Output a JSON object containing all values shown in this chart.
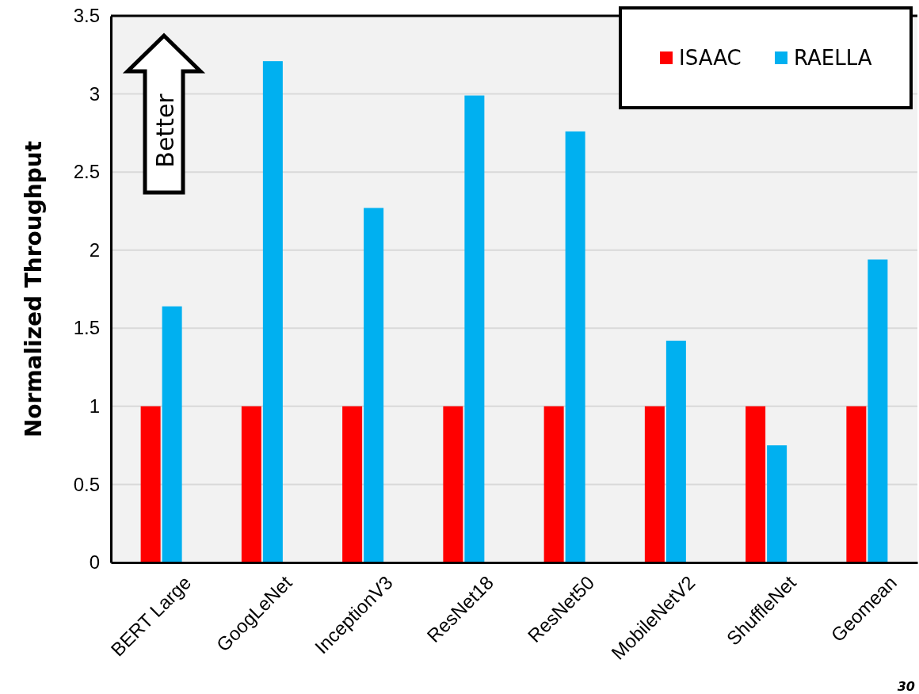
{
  "chart_data": {
    "type": "bar",
    "ylabel": "Normalized Throughput",
    "categories": [
      "BERT Large",
      "GoogLeNet",
      "InceptionV3",
      "ResNet18",
      "ResNet50",
      "MobileNetV2",
      "ShuffleNet",
      "Geomean"
    ],
    "series": [
      {
        "name": "ISAAC",
        "color": "#ff0000",
        "values": [
          1,
          1,
          1,
          1,
          1,
          1,
          1,
          1
        ]
      },
      {
        "name": "RAELLA",
        "color": "#00b0f0",
        "values": [
          1.64,
          3.21,
          2.27,
          2.99,
          2.76,
          1.42,
          0.75,
          1.94
        ]
      }
    ],
    "ylim": [
      0,
      3.5
    ],
    "yticks": [
      0,
      0.5,
      1,
      1.5,
      2,
      2.5,
      3,
      3.5
    ],
    "grid": "y",
    "legend": "top right",
    "annotations": [
      "Better",
      "30"
    ]
  }
}
